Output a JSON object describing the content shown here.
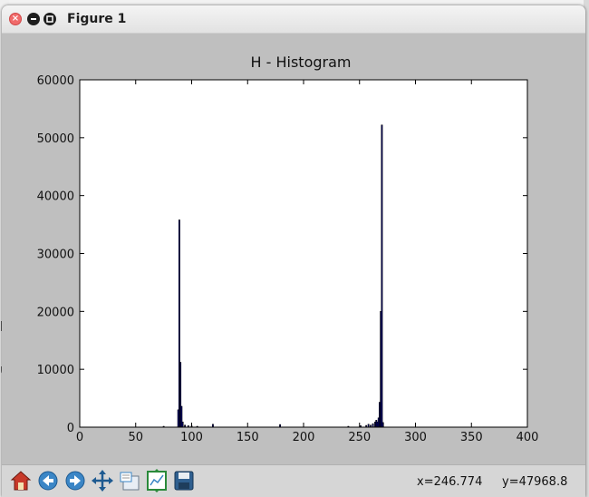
{
  "window": {
    "title": "Figure 1"
  },
  "plot": {
    "title": "H - Histogram"
  },
  "chart_data": {
    "type": "bar",
    "title": "H - Histogram",
    "xlabel": "",
    "ylabel": "",
    "xlim": [
      0,
      400
    ],
    "ylim": [
      0,
      60000
    ],
    "x_ticks": [
      "0",
      "50",
      "100",
      "150",
      "200",
      "250",
      "300",
      "350",
      "400"
    ],
    "y_ticks": [
      "0",
      "10000",
      "20000",
      "30000",
      "40000",
      "50000",
      "60000"
    ],
    "grid": false,
    "bar_color": "#000080",
    "bars": [
      {
        "x": 75,
        "value": 150
      },
      {
        "x": 88,
        "value": 3000
      },
      {
        "x": 89,
        "value": 35800
      },
      {
        "x": 90,
        "value": 11200
      },
      {
        "x": 91,
        "value": 3600
      },
      {
        "x": 92,
        "value": 900
      },
      {
        "x": 94,
        "value": 350
      },
      {
        "x": 97,
        "value": 250
      },
      {
        "x": 100,
        "value": 200
      },
      {
        "x": 105,
        "value": 150
      },
      {
        "x": 119,
        "value": 500
      },
      {
        "x": 179,
        "value": 450
      },
      {
        "x": 240,
        "value": 150
      },
      {
        "x": 251,
        "value": 250
      },
      {
        "x": 256,
        "value": 300
      },
      {
        "x": 258,
        "value": 500
      },
      {
        "x": 260,
        "value": 350
      },
      {
        "x": 262,
        "value": 600
      },
      {
        "x": 264,
        "value": 900
      },
      {
        "x": 265,
        "value": 1200
      },
      {
        "x": 266,
        "value": 900
      },
      {
        "x": 267,
        "value": 1600
      },
      {
        "x": 268,
        "value": 4300
      },
      {
        "x": 269,
        "value": 20000
      },
      {
        "x": 270,
        "value": 52200
      },
      {
        "x": 271,
        "value": 800
      }
    ]
  },
  "toolbar": {
    "buttons": [
      "home-icon",
      "back-arrow-icon",
      "forward-arrow-icon",
      "pan-move-icon",
      "zoom-rect-icon",
      "configure-subplots-icon",
      "save-floppy-icon"
    ],
    "x_readout": "x=246.774",
    "y_readout": "y=47968.8"
  },
  "background": {
    "frag1": "r",
    "frag2": "r",
    "frag3": "p",
    "frag4": "u",
    "frag5": "]",
    "frag6": ";",
    "colors": {
      "frag_green": "#7ac000"
    }
  }
}
